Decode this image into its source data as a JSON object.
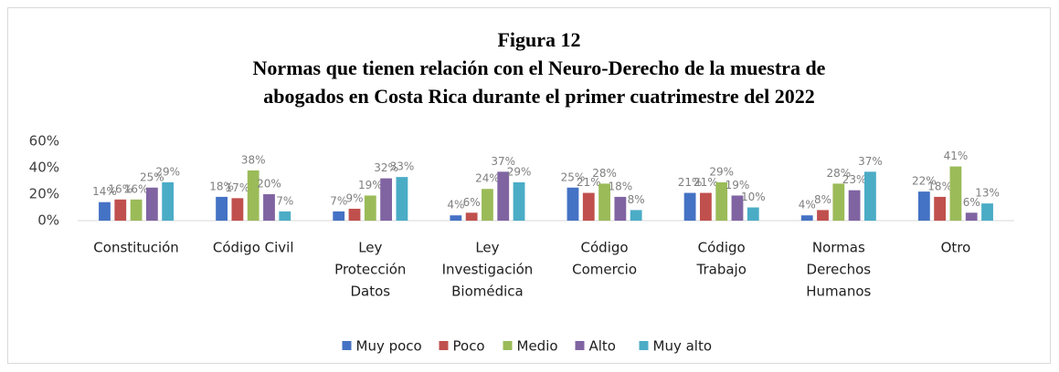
{
  "chart_data": {
    "type": "bar",
    "title_lines": [
      "Figura 12",
      "Normas que tienen relación con el Neuro-Derecho de la muestra de",
      "abogados en Costa Rica durante el primer cuatrimestre del 2022"
    ],
    "categories": [
      [
        "Constitución"
      ],
      [
        "Código Civil"
      ],
      [
        "Ley",
        "Protección",
        "Datos"
      ],
      [
        "Ley",
        "Investigación",
        "Biomédica"
      ],
      [
        "Código",
        "Comercio"
      ],
      [
        "Código",
        "Trabajo"
      ],
      [
        "Normas",
        "Derechos",
        "Humanos"
      ],
      [
        "Otro"
      ]
    ],
    "series": [
      {
        "name": "Muy poco",
        "color": "#4472c4",
        "values": [
          14,
          18,
          7,
          4,
          25,
          21,
          4,
          22
        ],
        "value_labels": [
          "14%",
          "18%",
          "7%",
          "4%",
          "25%",
          "21%",
          "4%",
          "22%"
        ]
      },
      {
        "name": "Poco",
        "color": "#c0504d",
        "values": [
          16,
          17,
          9,
          6,
          21,
          21,
          8,
          18
        ],
        "value_labels": [
          "16%",
          "17%",
          "9%",
          "6%",
          "21%",
          "21%",
          "8%",
          "18%"
        ]
      },
      {
        "name": "Medio",
        "color": "#9bbb59",
        "values": [
          16,
          38,
          19,
          24,
          28,
          29,
          28,
          41
        ],
        "value_labels": [
          "16%",
          "38%",
          "19%",
          "24%",
          "28%",
          "29%",
          "28%",
          "41%"
        ]
      },
      {
        "name": "Alto",
        "color": "#8064a2",
        "values": [
          25,
          20,
          32,
          37,
          18,
          19,
          23,
          6
        ],
        "value_labels": [
          "25%",
          "20%",
          "32%",
          "37%",
          "18%",
          "19%",
          "23%",
          "6%"
        ]
      },
      {
        "name": "Muy alto",
        "color": "#4bacc6",
        "values": [
          29,
          7,
          33,
          29,
          8,
          10,
          37,
          13
        ],
        "value_labels": [
          "29%",
          "7%",
          "33%",
          "29%",
          "8%",
          "10%",
          "37%",
          "13%"
        ]
      }
    ],
    "ylim": [
      0,
      60
    ],
    "yticks": [
      {
        "value": 0,
        "label": "0%"
      },
      {
        "value": 20,
        "label": "20%"
      },
      {
        "value": 40,
        "label": "40%"
      },
      {
        "value": 60,
        "label": "60%"
      }
    ],
    "grid": false,
    "legend": "bottom"
  }
}
